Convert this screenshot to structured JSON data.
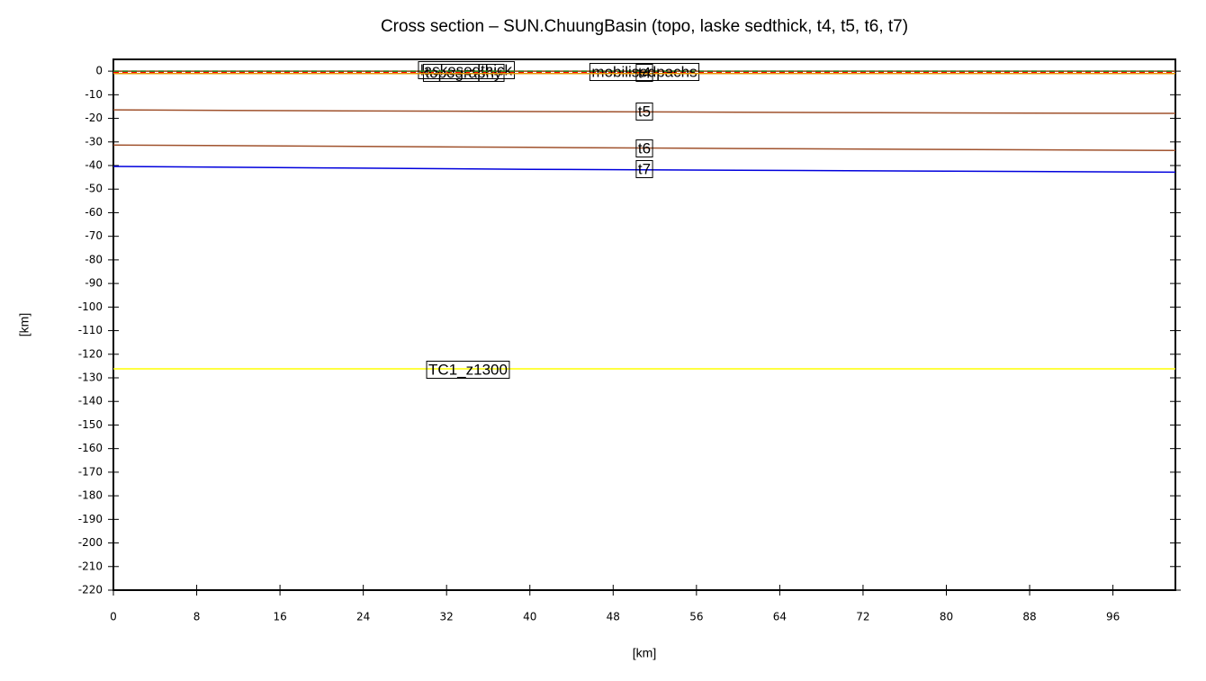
{
  "chart_data": {
    "type": "line",
    "title": "Cross section – SUN.ChuungBasin (topo, laske sedthick, t4, t5, t6, t7)",
    "xlabel": "[km]",
    "ylabel": "[km]",
    "x": [
      0,
      20,
      40,
      60,
      80,
      102
    ],
    "xlim": [
      0,
      102
    ],
    "ylim": [
      -220,
      5
    ],
    "xticks": [
      0,
      8,
      16,
      24,
      32,
      40,
      48,
      56,
      64,
      72,
      80,
      88,
      96
    ],
    "yticks": [
      0,
      -10,
      -20,
      -30,
      -40,
      -50,
      -60,
      -70,
      -80,
      -90,
      -100,
      -110,
      -120,
      -130,
      -140,
      -150,
      -160,
      -170,
      -180,
      -190,
      -200,
      -210,
      -220
    ],
    "series": [
      {
        "name": "topography",
        "color": "#8b4513",
        "values": [
          0,
          0,
          0,
          0,
          0,
          0
        ]
      },
      {
        "name": "laskesedthick",
        "color": "#ff0000",
        "dashed": true,
        "values": [
          -0.5,
          -0.5,
          -0.5,
          -0.5,
          -0.5,
          -0.5
        ]
      },
      {
        "name": "mobilisedpachs",
        "color": "#228b22",
        "dashed": true,
        "values": [
          0,
          0,
          0,
          0,
          0,
          0
        ]
      },
      {
        "name": "t4",
        "color": "#e69500",
        "values": [
          -1,
          -1,
          -1,
          -1,
          -1,
          -1
        ]
      },
      {
        "name": "t5",
        "color": "#a0522d",
        "values": [
          -16.4,
          -16.8,
          -17.1,
          -17.4,
          -17.7,
          -17.9
        ]
      },
      {
        "name": "t6",
        "color": "#a0522d",
        "values": [
          -31.3,
          -31.8,
          -32.3,
          -32.8,
          -33.2,
          -33.6
        ]
      },
      {
        "name": "t7",
        "color": "#0000dd",
        "values": [
          -40.4,
          -41.0,
          -41.6,
          -42.0,
          -42.4,
          -42.8
        ]
      },
      {
        "name": "TC1_z1300",
        "color": "#ffff00",
        "values": [
          -126.2,
          -126.2,
          -126.2,
          -126.2,
          -126.2,
          -126.2
        ]
      }
    ]
  }
}
